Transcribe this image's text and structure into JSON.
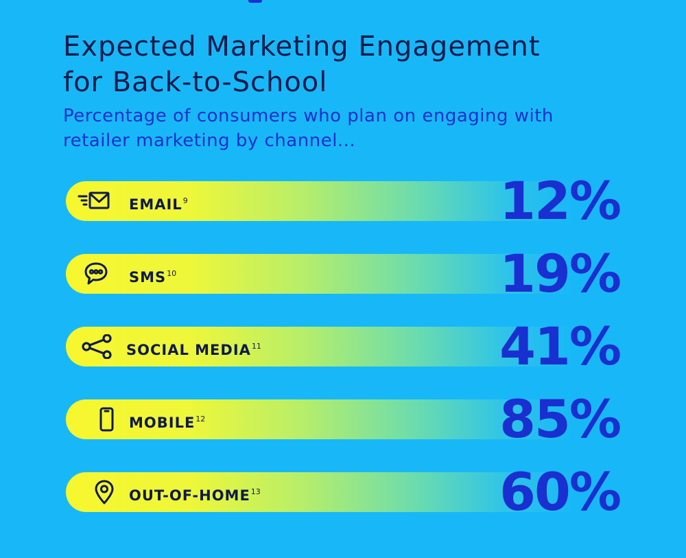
{
  "header": {
    "title_lines": [
      "Expected Marketing Engagement",
      "for Back-to-School"
    ],
    "subtitle_lines": [
      "Percentage of consumers who plan on engaging with",
      "retailer marketing by channel..."
    ]
  },
  "chart_data": {
    "type": "bar",
    "title": "Expected Marketing Engagement for Back-to-School",
    "subtitle": "Percentage of consumers who plan on engaging with retailer marketing by channel...",
    "categories": [
      "EMAIL",
      "SMS",
      "SOCIAL MEDIA",
      "MOBILE",
      "OUT-OF-HOME"
    ],
    "footnotes": [
      "9",
      "10",
      "11",
      "12",
      "13"
    ],
    "values": [
      12,
      19,
      41,
      85,
      60
    ],
    "value_labels": [
      "12%",
      "19%",
      "41%",
      "85%",
      "60%"
    ],
    "icons": [
      "email-icon",
      "sms-icon",
      "share-icon",
      "mobile-icon",
      "location-pin-icon"
    ],
    "unit": "%",
    "xlabel": "",
    "ylabel": ""
  },
  "colors": {
    "background": "#18b8f8",
    "title": "#101a4a",
    "accent": "#1a2fd0",
    "bar_start": "#f7f72e"
  }
}
